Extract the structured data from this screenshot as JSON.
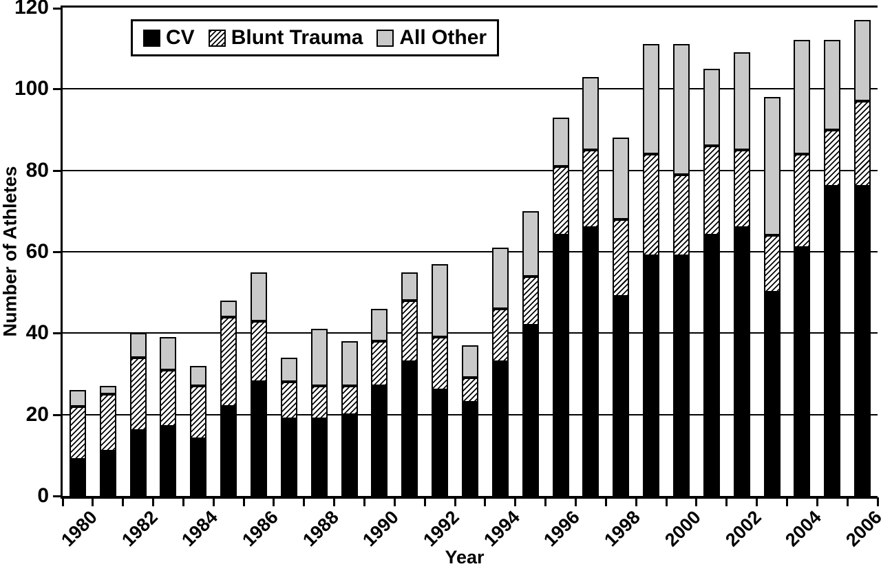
{
  "chart_data": {
    "type": "bar",
    "stacked": true,
    "title": "",
    "xlabel": "Year",
    "ylabel": "Number of Athletes",
    "ylim": [
      0,
      120
    ],
    "yticks": [
      0,
      20,
      40,
      60,
      80,
      100,
      120
    ],
    "grid": true,
    "legend_position": "top-left",
    "categories": [
      1980,
      1981,
      1982,
      1983,
      1984,
      1985,
      1986,
      1987,
      1988,
      1989,
      1990,
      1991,
      1992,
      1993,
      1994,
      1995,
      1996,
      1997,
      1998,
      1999,
      2000,
      2001,
      2002,
      2003,
      2004,
      2005,
      2006
    ],
    "xtick_labels": [
      "1980",
      "1982",
      "1984",
      "1986",
      "1988",
      "1990",
      "1992",
      "1994",
      "1996",
      "1998",
      "2000",
      "2002",
      "2004",
      "2006"
    ],
    "series": [
      {
        "name": "CV",
        "pattern": "solid",
        "color": "#000000",
        "values": [
          9,
          11,
          16,
          17,
          14,
          22,
          28,
          19,
          19,
          20,
          27,
          33,
          26,
          23,
          33,
          42,
          64,
          66,
          49,
          59,
          59,
          64,
          66,
          50,
          61,
          76,
          76
        ]
      },
      {
        "name": "Blunt Trauma",
        "pattern": "diagonal-hatch",
        "color": "#ffffff",
        "hatch_line_color": "#000000",
        "values": [
          13,
          14,
          18,
          14,
          13,
          22,
          15,
          9,
          8,
          7,
          11,
          15,
          13,
          6,
          13,
          12,
          17,
          19,
          19,
          25,
          20,
          22,
          19,
          14,
          23,
          14,
          21
        ]
      },
      {
        "name": "All Other",
        "pattern": "solid",
        "color": "#c9c9c9",
        "values": [
          4,
          2,
          6,
          8,
          5,
          4,
          12,
          6,
          14,
          11,
          8,
          7,
          18,
          8,
          15,
          16,
          12,
          18,
          20,
          27,
          32,
          19,
          24,
          34,
          28,
          22,
          20
        ]
      }
    ],
    "totals": [
      26,
      27,
      40,
      39,
      32,
      48,
      55,
      34,
      41,
      38,
      46,
      55,
      57,
      37,
      61,
      70,
      93,
      103,
      88,
      111,
      111,
      105,
      109,
      98,
      112,
      112,
      117
    ]
  },
  "colors": {
    "axis": "#000000",
    "cv": "#000000",
    "blunt_trauma_bg": "#ffffff",
    "all_other": "#c9c9c9"
  }
}
